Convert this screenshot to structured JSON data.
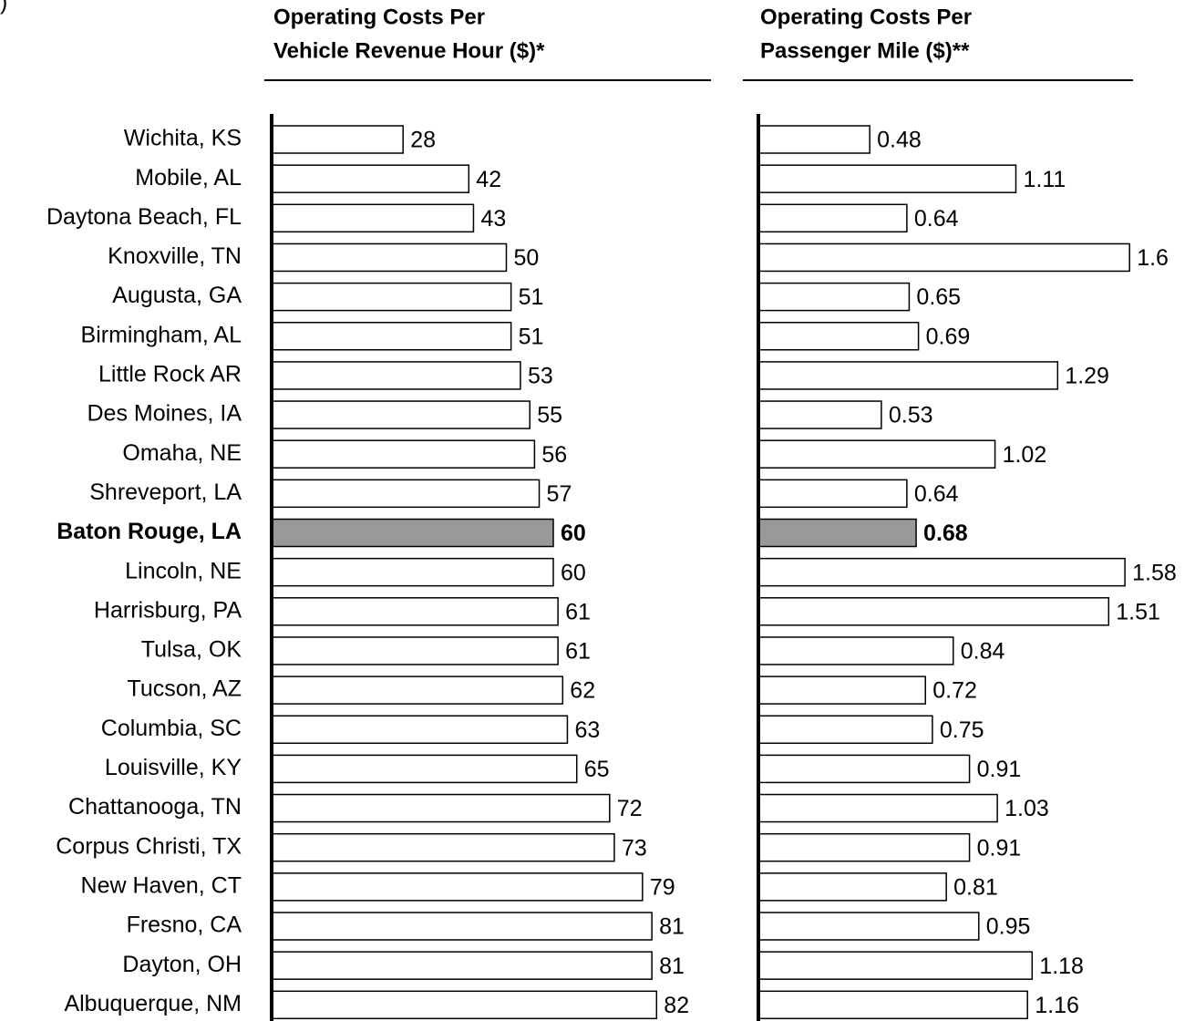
{
  "note": ")",
  "chart_data": [
    {
      "type": "bar",
      "orientation": "horizontal",
      "title_lines": [
        "Operating Costs Per",
        "Vehicle Revenue Hour ($)*"
      ],
      "categories": [
        "Wichita, KS",
        "Mobile, AL",
        "Daytona Beach, FL",
        "Knoxville, TN",
        "Augusta, GA",
        "Birmingham, AL",
        "Little Rock AR",
        "Des Moines, IA",
        "Omaha, NE",
        "Shreveport, LA",
        "Baton Rouge, LA",
        "Lincoln, NE",
        "Harrisburg, PA",
        "Tulsa, OK",
        "Tucson, AZ",
        "Columbia, SC",
        "Louisville, KY",
        "Chattanooga, TN",
        "Corpus Christi, TX",
        "New Haven, CT",
        "Fresno, CA",
        "Dayton, OH",
        "Albuquerque, NM"
      ],
      "values": [
        28,
        42,
        43,
        50,
        51,
        51,
        53,
        55,
        56,
        57,
        60,
        60,
        61,
        61,
        62,
        63,
        65,
        72,
        73,
        79,
        81,
        81,
        82
      ],
      "color": "#ffffff",
      "highlight": "Baton Rouge, LA",
      "highlight_color": "#999999",
      "xlim": [
        0,
        100
      ]
    },
    {
      "type": "bar",
      "orientation": "horizontal",
      "title_lines": [
        "Operating Costs Per",
        "Passenger Mile ($)**"
      ],
      "values": [
        0.48,
        1.11,
        0.64,
        1.6,
        0.65,
        0.69,
        1.29,
        0.53,
        1.02,
        0.64,
        0.68,
        1.58,
        1.51,
        0.84,
        0.72,
        0.75,
        0.91,
        1.03,
        0.91,
        0.81,
        0.95,
        1.18,
        1.16
      ],
      "color": "#ffffff",
      "highlight": "Baton Rouge, LA",
      "highlight_color": "#999999",
      "xlim": [
        0,
        2
      ]
    }
  ]
}
